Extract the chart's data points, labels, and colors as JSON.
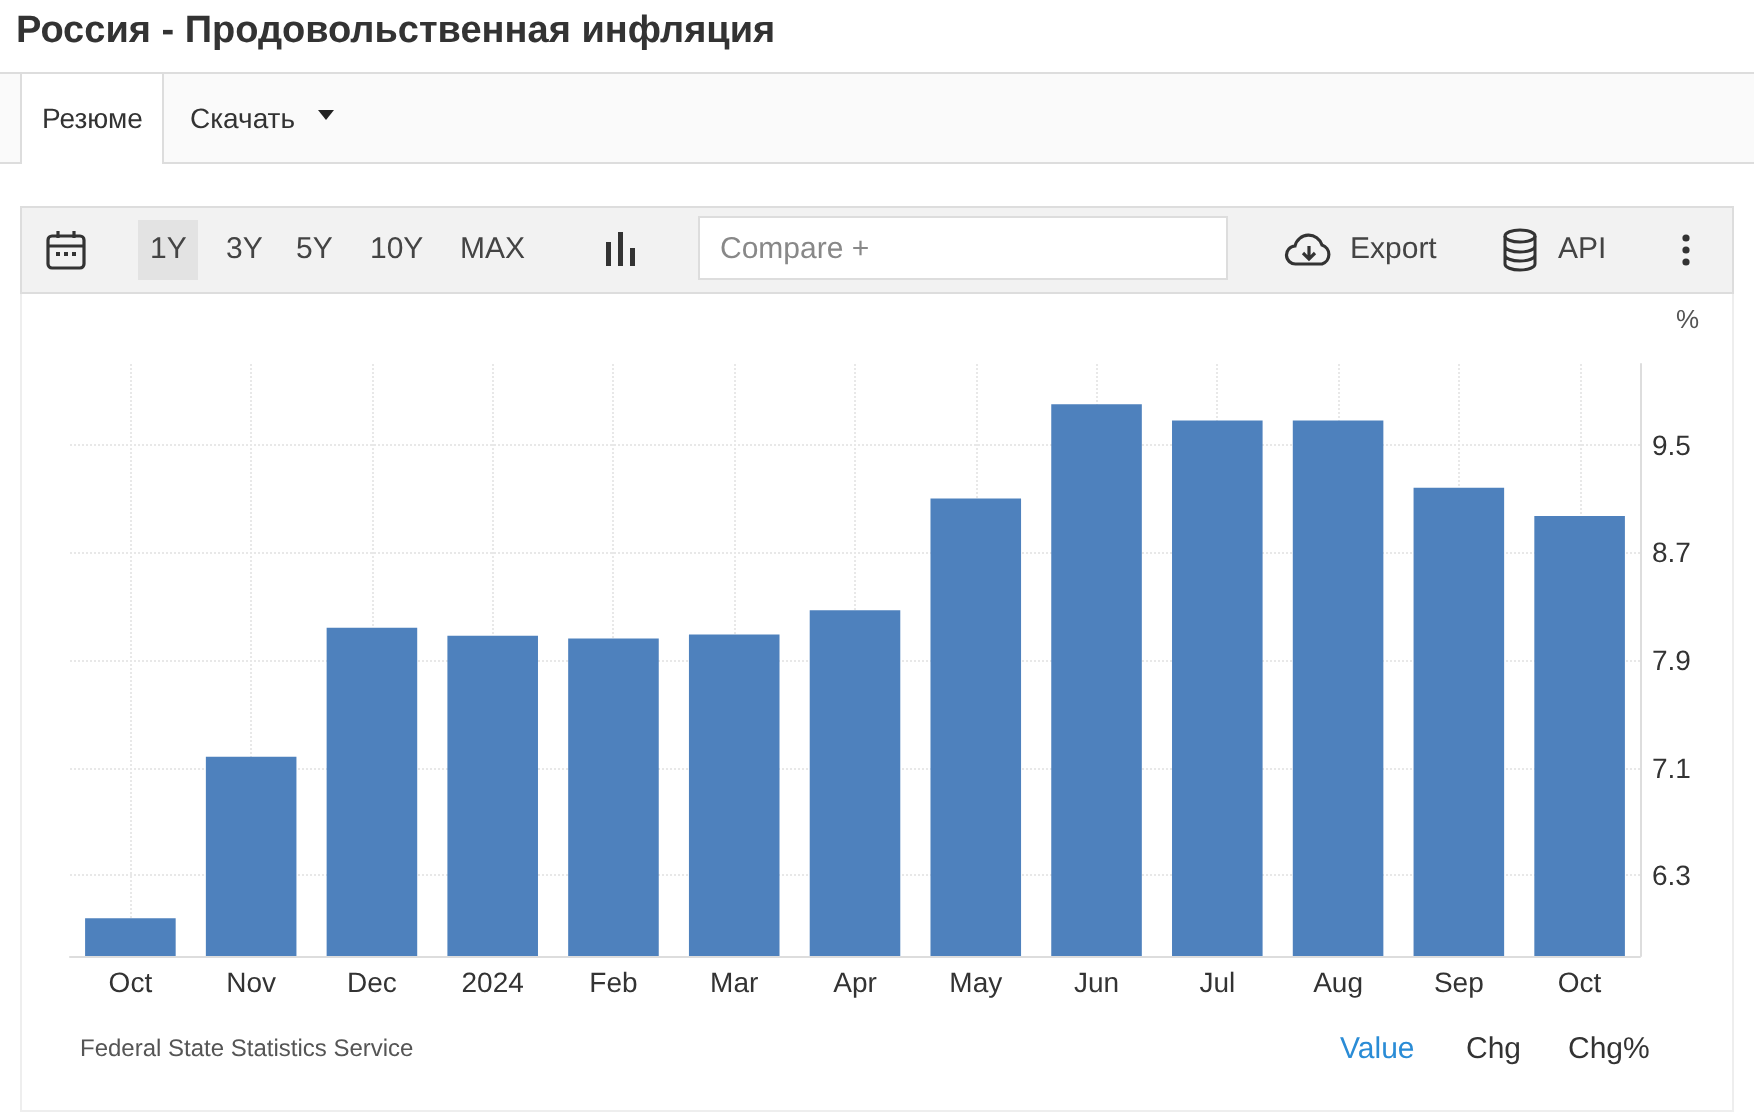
{
  "chart_data": {
    "type": "bar",
    "title": "Россия - Продовольственная инфляция",
    "ylabel": "%",
    "categories": [
      "Oct",
      "Nov",
      "Dec",
      "2024",
      "Feb",
      "Mar",
      "Apr",
      "May",
      "Jun",
      "Jul",
      "Aug",
      "Sep",
      "Oct"
    ],
    "values": [
      5.98,
      7.18,
      8.14,
      8.08,
      8.06,
      8.09,
      8.27,
      9.1,
      9.8,
      9.68,
      9.68,
      9.18,
      8.97
    ],
    "color": "#4e81bd",
    "ylim": [
      5.7,
      10.1
    ],
    "yticks": [
      6.3,
      7.1,
      7.9,
      8.7,
      9.5
    ],
    "grid": true,
    "annotations": [
      "Резюме",
      "Скачать",
      "1Y",
      "3Y",
      "5Y",
      "10Y",
      "MAX",
      "Compare +",
      "Export",
      "API",
      "Federal State Statistics Service",
      "Value",
      "Chg",
      "Chg%"
    ]
  }
}
